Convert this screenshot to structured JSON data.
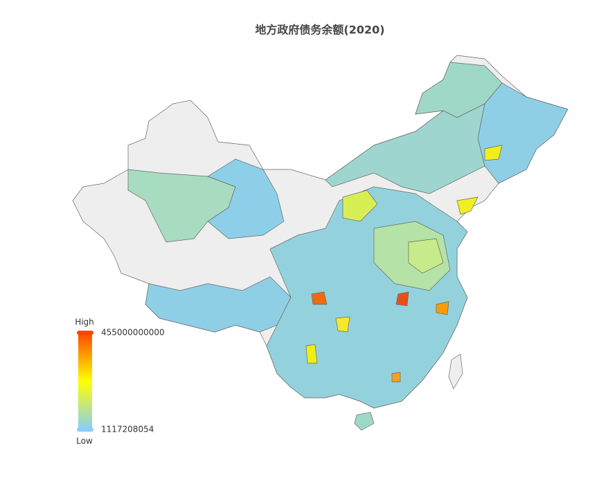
{
  "title": "地方政府债务余额(2020)",
  "visual_map": {
    "high_label": "High",
    "low_label": "Low",
    "max": 455000000000,
    "min": 1117208054,
    "colors": [
      "lightskyblue",
      "yellow",
      "orangered"
    ]
  }
}
